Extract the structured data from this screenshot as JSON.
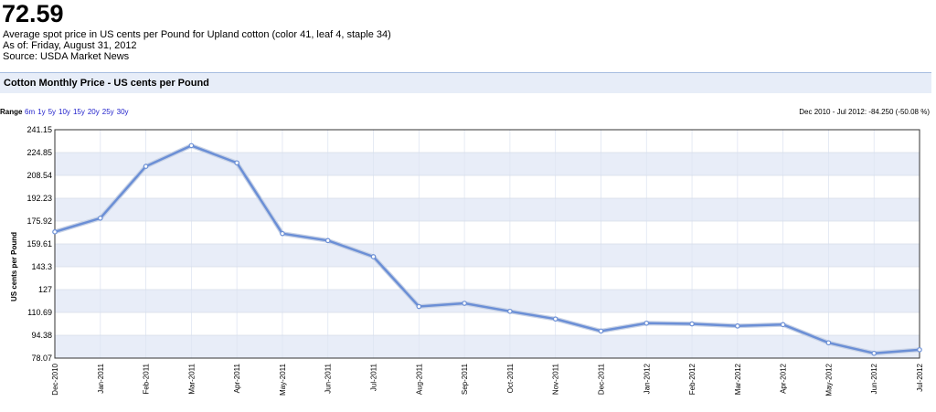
{
  "header": {
    "price": "72.59",
    "description": "Average spot price in US cents per Pound for Upland cotton (color 41, leaf 4, staple 34)",
    "as_of": "As of: Friday, August 31, 2012",
    "source": "Source: USDA Market News"
  },
  "section": {
    "title": "Cotton Monthly Price - US cents per Pound"
  },
  "range": {
    "label": "Range",
    "options": [
      "6m",
      "1y",
      "5y",
      "10y",
      "15y",
      "20y",
      "25y",
      "30y"
    ],
    "change_text": "Dec 2010 - Jul 2012: -84.250 (-50.08 %)"
  },
  "colors": {
    "line": "#6b8fd6",
    "band": "#e8edf8",
    "frame": "#333333",
    "accent_bar": "#e7edf8"
  },
  "chart_data": {
    "type": "line",
    "title": "",
    "xlabel": "",
    "ylabel": "US cents per Pound",
    "ylim": [
      78.07,
      241.15
    ],
    "yticks": [
      "241.15",
      "224.85",
      "208.54",
      "192.23",
      "175.92",
      "159.61",
      "143.3",
      "127",
      "110.69",
      "94.38",
      "78.07"
    ],
    "categories": [
      "Dec-2010",
      "Jan-2011",
      "Feb-2011",
      "Mar-2011",
      "Apr-2011",
      "May-2011",
      "Jun-2011",
      "Jul-2011",
      "Aug-2011",
      "Sep-2011",
      "Oct-2011",
      "Nov-2011",
      "Dec-2011",
      "Jan-2012",
      "Feb-2012",
      "Mar-2012",
      "Apr-2012",
      "May-2012",
      "Jun-2012",
      "Jul-2012"
    ],
    "series": [
      {
        "values": [
          168.2,
          178.0,
          215.0,
          229.8,
          217.5,
          167.0,
          162.0,
          150.5,
          114.9,
          117.2,
          111.5,
          106.0,
          97.4,
          103.0,
          102.5,
          101.0,
          102.0,
          89.0,
          81.5,
          84.0
        ]
      }
    ],
    "grid": true,
    "legend": "none"
  }
}
